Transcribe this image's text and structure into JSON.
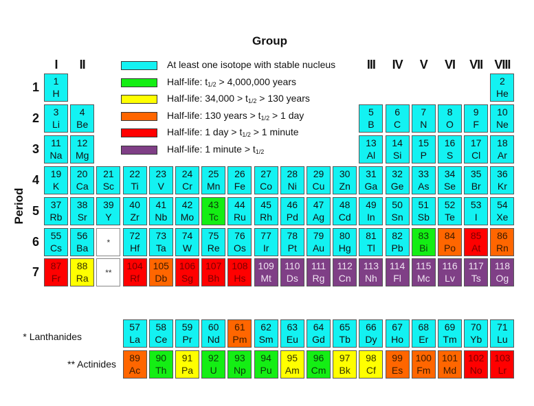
{
  "title": "Group",
  "axis": {
    "period_label": "Period"
  },
  "colors": {
    "stable": "#13F2F2",
    "gt4m": "#14EE14",
    "34k_130y": "#FFFF00",
    "130y_1d": "#FF6600",
    "1d_1m": "#FF0000",
    "lt1m": "#7F3F86",
    "placeholder": "#FFFFFF"
  },
  "text_colors": {
    "stable": "#111111",
    "gt4m": "#0a3a0a",
    "34k_130y": "#333300",
    "130y_1d": "#3a1a00",
    "1d_1m": "#7a0000",
    "lt1m": "#f0e4f2",
    "placeholder": "#333333"
  },
  "groups": [
    {
      "label": "I",
      "col": 1
    },
    {
      "label": "II",
      "col": 2
    },
    {
      "label": "III",
      "col": 13
    },
    {
      "label": "IV",
      "col": 14
    },
    {
      "label": "V",
      "col": 15
    },
    {
      "label": "VI",
      "col": 16
    },
    {
      "label": "VII",
      "col": 17
    },
    {
      "label": "VIII",
      "col": 18
    }
  ],
  "periods": [
    "1",
    "2",
    "3",
    "4",
    "5",
    "6",
    "7"
  ],
  "legend": [
    {
      "key": "stable",
      "text": "At least one isotope with stable nucleus"
    },
    {
      "key": "gt4m",
      "text": "Half-life: t1/2 > 4,000,000 years"
    },
    {
      "key": "34k_130y",
      "text": "Half-life: 34,000 > t1/2 > 130 years"
    },
    {
      "key": "130y_1d",
      "text": "Half-life: 130 years > t1/2 > 1 day"
    },
    {
      "key": "1d_1m",
      "text": "Half-life: 1 day > t1/2 > 1 minute"
    },
    {
      "key": "lt1m",
      "text": "Half-life: 1 minute > t1/2"
    }
  ],
  "series_labels": {
    "lanthanides": "* Lanthanides",
    "actinides": "** Actinides"
  },
  "elements": [
    {
      "n": "1",
      "s": "H",
      "r": 1,
      "c": 1,
      "k": "stable"
    },
    {
      "n": "2",
      "s": "He",
      "r": 1,
      "c": 18,
      "k": "stable"
    },
    {
      "n": "3",
      "s": "Li",
      "r": 2,
      "c": 1,
      "k": "stable"
    },
    {
      "n": "4",
      "s": "Be",
      "r": 2,
      "c": 2,
      "k": "stable"
    },
    {
      "n": "5",
      "s": "B",
      "r": 2,
      "c": 13,
      "k": "stable"
    },
    {
      "n": "6",
      "s": "C",
      "r": 2,
      "c": 14,
      "k": "stable"
    },
    {
      "n": "7",
      "s": "N",
      "r": 2,
      "c": 15,
      "k": "stable"
    },
    {
      "n": "8",
      "s": "O",
      "r": 2,
      "c": 16,
      "k": "stable"
    },
    {
      "n": "9",
      "s": "F",
      "r": 2,
      "c": 17,
      "k": "stable"
    },
    {
      "n": "10",
      "s": "Ne",
      "r": 2,
      "c": 18,
      "k": "stable"
    },
    {
      "n": "11",
      "s": "Na",
      "r": 3,
      "c": 1,
      "k": "stable"
    },
    {
      "n": "12",
      "s": "Mg",
      "r": 3,
      "c": 2,
      "k": "stable"
    },
    {
      "n": "13",
      "s": "Al",
      "r": 3,
      "c": 13,
      "k": "stable"
    },
    {
      "n": "14",
      "s": "Si",
      "r": 3,
      "c": 14,
      "k": "stable"
    },
    {
      "n": "15",
      "s": "P",
      "r": 3,
      "c": 15,
      "k": "stable"
    },
    {
      "n": "16",
      "s": "S",
      "r": 3,
      "c": 16,
      "k": "stable"
    },
    {
      "n": "17",
      "s": "Cl",
      "r": 3,
      "c": 17,
      "k": "stable"
    },
    {
      "n": "18",
      "s": "Ar",
      "r": 3,
      "c": 18,
      "k": "stable"
    },
    {
      "n": "19",
      "s": "K",
      "r": 4,
      "c": 1,
      "k": "stable"
    },
    {
      "n": "20",
      "s": "Ca",
      "r": 4,
      "c": 2,
      "k": "stable"
    },
    {
      "n": "21",
      "s": "Sc",
      "r": 4,
      "c": 3,
      "k": "stable"
    },
    {
      "n": "22",
      "s": "Ti",
      "r": 4,
      "c": 4,
      "k": "stable"
    },
    {
      "n": "23",
      "s": "V",
      "r": 4,
      "c": 5,
      "k": "stable"
    },
    {
      "n": "24",
      "s": "Cr",
      "r": 4,
      "c": 6,
      "k": "stable"
    },
    {
      "n": "25",
      "s": "Mn",
      "r": 4,
      "c": 7,
      "k": "stable"
    },
    {
      "n": "26",
      "s": "Fe",
      "r": 4,
      "c": 8,
      "k": "stable"
    },
    {
      "n": "27",
      "s": "Co",
      "r": 4,
      "c": 9,
      "k": "stable"
    },
    {
      "n": "28",
      "s": "Ni",
      "r": 4,
      "c": 10,
      "k": "stable"
    },
    {
      "n": "29",
      "s": "Cu",
      "r": 4,
      "c": 11,
      "k": "stable"
    },
    {
      "n": "30",
      "s": "Zn",
      "r": 4,
      "c": 12,
      "k": "stable"
    },
    {
      "n": "31",
      "s": "Ga",
      "r": 4,
      "c": 13,
      "k": "stable"
    },
    {
      "n": "32",
      "s": "Ge",
      "r": 4,
      "c": 14,
      "k": "stable"
    },
    {
      "n": "33",
      "s": "As",
      "r": 4,
      "c": 15,
      "k": "stable"
    },
    {
      "n": "34",
      "s": "Se",
      "r": 4,
      "c": 16,
      "k": "stable"
    },
    {
      "n": "35",
      "s": "Br",
      "r": 4,
      "c": 17,
      "k": "stable"
    },
    {
      "n": "36",
      "s": "Kr",
      "r": 4,
      "c": 18,
      "k": "stable"
    },
    {
      "n": "37",
      "s": "Rb",
      "r": 5,
      "c": 1,
      "k": "stable"
    },
    {
      "n": "38",
      "s": "Sr",
      "r": 5,
      "c": 2,
      "k": "stable"
    },
    {
      "n": "39",
      "s": "Y",
      "r": 5,
      "c": 3,
      "k": "stable"
    },
    {
      "n": "40",
      "s": "Zr",
      "r": 5,
      "c": 4,
      "k": "stable"
    },
    {
      "n": "41",
      "s": "Nb",
      "r": 5,
      "c": 5,
      "k": "stable"
    },
    {
      "n": "42",
      "s": "Mo",
      "r": 5,
      "c": 6,
      "k": "stable"
    },
    {
      "n": "43",
      "s": "Tc",
      "r": 5,
      "c": 7,
      "k": "gt4m"
    },
    {
      "n": "44",
      "s": "Ru",
      "r": 5,
      "c": 8,
      "k": "stable"
    },
    {
      "n": "45",
      "s": "Rh",
      "r": 5,
      "c": 9,
      "k": "stable"
    },
    {
      "n": "46",
      "s": "Pd",
      "r": 5,
      "c": 10,
      "k": "stable"
    },
    {
      "n": "47",
      "s": "Ag",
      "r": 5,
      "c": 11,
      "k": "stable"
    },
    {
      "n": "48",
      "s": "Cd",
      "r": 5,
      "c": 12,
      "k": "stable"
    },
    {
      "n": "49",
      "s": "In",
      "r": 5,
      "c": 13,
      "k": "stable"
    },
    {
      "n": "50",
      "s": "Sn",
      "r": 5,
      "c": 14,
      "k": "stable"
    },
    {
      "n": "51",
      "s": "Sb",
      "r": 5,
      "c": 15,
      "k": "stable"
    },
    {
      "n": "52",
      "s": "Te",
      "r": 5,
      "c": 16,
      "k": "stable"
    },
    {
      "n": "53",
      "s": "I",
      "r": 5,
      "c": 17,
      "k": "stable"
    },
    {
      "n": "54",
      "s": "Xe",
      "r": 5,
      "c": 18,
      "k": "stable"
    },
    {
      "n": "55",
      "s": "Cs",
      "r": 6,
      "c": 1,
      "k": "stable"
    },
    {
      "n": "56",
      "s": "Ba",
      "r": 6,
      "c": 2,
      "k": "stable"
    },
    {
      "n": "",
      "s": "*",
      "r": 6,
      "c": 3,
      "k": "placeholder"
    },
    {
      "n": "72",
      "s": "Hf",
      "r": 6,
      "c": 4,
      "k": "stable"
    },
    {
      "n": "73",
      "s": "Ta",
      "r": 6,
      "c": 5,
      "k": "stable"
    },
    {
      "n": "74",
      "s": "W",
      "r": 6,
      "c": 6,
      "k": "stable"
    },
    {
      "n": "75",
      "s": "Re",
      "r": 6,
      "c": 7,
      "k": "stable"
    },
    {
      "n": "76",
      "s": "Os",
      "r": 6,
      "c": 8,
      "k": "stable"
    },
    {
      "n": "77",
      "s": "Ir",
      "r": 6,
      "c": 9,
      "k": "stable"
    },
    {
      "n": "78",
      "s": "Pt",
      "r": 6,
      "c": 10,
      "k": "stable"
    },
    {
      "n": "79",
      "s": "Au",
      "r": 6,
      "c": 11,
      "k": "stable"
    },
    {
      "n": "80",
      "s": "Hg",
      "r": 6,
      "c": 12,
      "k": "stable"
    },
    {
      "n": "81",
      "s": "Tl",
      "r": 6,
      "c": 13,
      "k": "stable"
    },
    {
      "n": "82",
      "s": "Pb",
      "r": 6,
      "c": 14,
      "k": "stable"
    },
    {
      "n": "83",
      "s": "Bi",
      "r": 6,
      "c": 15,
      "k": "gt4m"
    },
    {
      "n": "84",
      "s": "Po",
      "r": 6,
      "c": 16,
      "k": "130y_1d"
    },
    {
      "n": "85",
      "s": "At",
      "r": 6,
      "c": 17,
      "k": "1d_1m"
    },
    {
      "n": "86",
      "s": "Rn",
      "r": 6,
      "c": 18,
      "k": "130y_1d"
    },
    {
      "n": "87",
      "s": "Fr",
      "r": 7,
      "c": 1,
      "k": "1d_1m"
    },
    {
      "n": "88",
      "s": "Ra",
      "r": 7,
      "c": 2,
      "k": "34k_130y"
    },
    {
      "n": "",
      "s": "**",
      "r": 7,
      "c": 3,
      "k": "placeholder"
    },
    {
      "n": "104",
      "s": "Rf",
      "r": 7,
      "c": 4,
      "k": "1d_1m"
    },
    {
      "n": "105",
      "s": "Db",
      "r": 7,
      "c": 5,
      "k": "130y_1d"
    },
    {
      "n": "106",
      "s": "Sg",
      "r": 7,
      "c": 6,
      "k": "1d_1m"
    },
    {
      "n": "107",
      "s": "Bh",
      "r": 7,
      "c": 7,
      "k": "1d_1m"
    },
    {
      "n": "108",
      "s": "Hs",
      "r": 7,
      "c": 8,
      "k": "1d_1m"
    },
    {
      "n": "109",
      "s": "Mt",
      "r": 7,
      "c": 9,
      "k": "lt1m"
    },
    {
      "n": "110",
      "s": "Ds",
      "r": 7,
      "c": 10,
      "k": "lt1m"
    },
    {
      "n": "111",
      "s": "Rg",
      "r": 7,
      "c": 11,
      "k": "lt1m"
    },
    {
      "n": "112",
      "s": "Cn",
      "r": 7,
      "c": 12,
      "k": "lt1m"
    },
    {
      "n": "113",
      "s": "Nh",
      "r": 7,
      "c": 13,
      "k": "lt1m"
    },
    {
      "n": "114",
      "s": "Fl",
      "r": 7,
      "c": 14,
      "k": "lt1m"
    },
    {
      "n": "115",
      "s": "Mc",
      "r": 7,
      "c": 15,
      "k": "lt1m"
    },
    {
      "n": "116",
      "s": "Lv",
      "r": 7,
      "c": 16,
      "k": "lt1m"
    },
    {
      "n": "117",
      "s": "Ts",
      "r": 7,
      "c": 17,
      "k": "lt1m"
    },
    {
      "n": "118",
      "s": "Og",
      "r": 7,
      "c": 18,
      "k": "lt1m"
    },
    {
      "n": "57",
      "s": "La",
      "r": "L",
      "c": 4,
      "k": "stable"
    },
    {
      "n": "58",
      "s": "Ce",
      "r": "L",
      "c": 5,
      "k": "stable"
    },
    {
      "n": "59",
      "s": "Pr",
      "r": "L",
      "c": 6,
      "k": "stable"
    },
    {
      "n": "60",
      "s": "Nd",
      "r": "L",
      "c": 7,
      "k": "stable"
    },
    {
      "n": "61",
      "s": "Pm",
      "r": "L",
      "c": 8,
      "k": "130y_1d"
    },
    {
      "n": "62",
      "s": "Sm",
      "r": "L",
      "c": 9,
      "k": "stable"
    },
    {
      "n": "63",
      "s": "Eu",
      "r": "L",
      "c": 10,
      "k": "stable"
    },
    {
      "n": "64",
      "s": "Gd",
      "r": "L",
      "c": 11,
      "k": "stable"
    },
    {
      "n": "65",
      "s": "Tb",
      "r": "L",
      "c": 12,
      "k": "stable"
    },
    {
      "n": "66",
      "s": "Dy",
      "r": "L",
      "c": 13,
      "k": "stable"
    },
    {
      "n": "67",
      "s": "Ho",
      "r": "L",
      "c": 14,
      "k": "stable"
    },
    {
      "n": "68",
      "s": "Er",
      "r": "L",
      "c": 15,
      "k": "stable"
    },
    {
      "n": "69",
      "s": "Tm",
      "r": "L",
      "c": 16,
      "k": "stable"
    },
    {
      "n": "70",
      "s": "Yb",
      "r": "L",
      "c": 17,
      "k": "stable"
    },
    {
      "n": "71",
      "s": "Lu",
      "r": "L",
      "c": 18,
      "k": "stable"
    },
    {
      "n": "89",
      "s": "Ac",
      "r": "A",
      "c": 4,
      "k": "130y_1d"
    },
    {
      "n": "90",
      "s": "Th",
      "r": "A",
      "c": 5,
      "k": "gt4m"
    },
    {
      "n": "91",
      "s": "Pa",
      "r": "A",
      "c": 6,
      "k": "34k_130y"
    },
    {
      "n": "92",
      "s": "U",
      "r": "A",
      "c": 7,
      "k": "gt4m"
    },
    {
      "n": "93",
      "s": "Np",
      "r": "A",
      "c": 8,
      "k": "gt4m"
    },
    {
      "n": "94",
      "s": "Pu",
      "r": "A",
      "c": 9,
      "k": "gt4m"
    },
    {
      "n": "95",
      "s": "Am",
      "r": "A",
      "c": 10,
      "k": "34k_130y"
    },
    {
      "n": "96",
      "s": "Cm",
      "r": "A",
      "c": 11,
      "k": "gt4m"
    },
    {
      "n": "97",
      "s": "Bk",
      "r": "A",
      "c": 12,
      "k": "34k_130y"
    },
    {
      "n": "98",
      "s": "Cf",
      "r": "A",
      "c": 13,
      "k": "34k_130y"
    },
    {
      "n": "99",
      "s": "Es",
      "r": "A",
      "c": 14,
      "k": "130y_1d"
    },
    {
      "n": "100",
      "s": "Fm",
      "r": "A",
      "c": 15,
      "k": "130y_1d"
    },
    {
      "n": "101",
      "s": "Md",
      "r": "A",
      "c": 16,
      "k": "130y_1d"
    },
    {
      "n": "102",
      "s": "No",
      "r": "A",
      "c": 17,
      "k": "1d_1m"
    },
    {
      "n": "103",
      "s": "Lr",
      "r": "A",
      "c": 18,
      "k": "1d_1m"
    }
  ]
}
